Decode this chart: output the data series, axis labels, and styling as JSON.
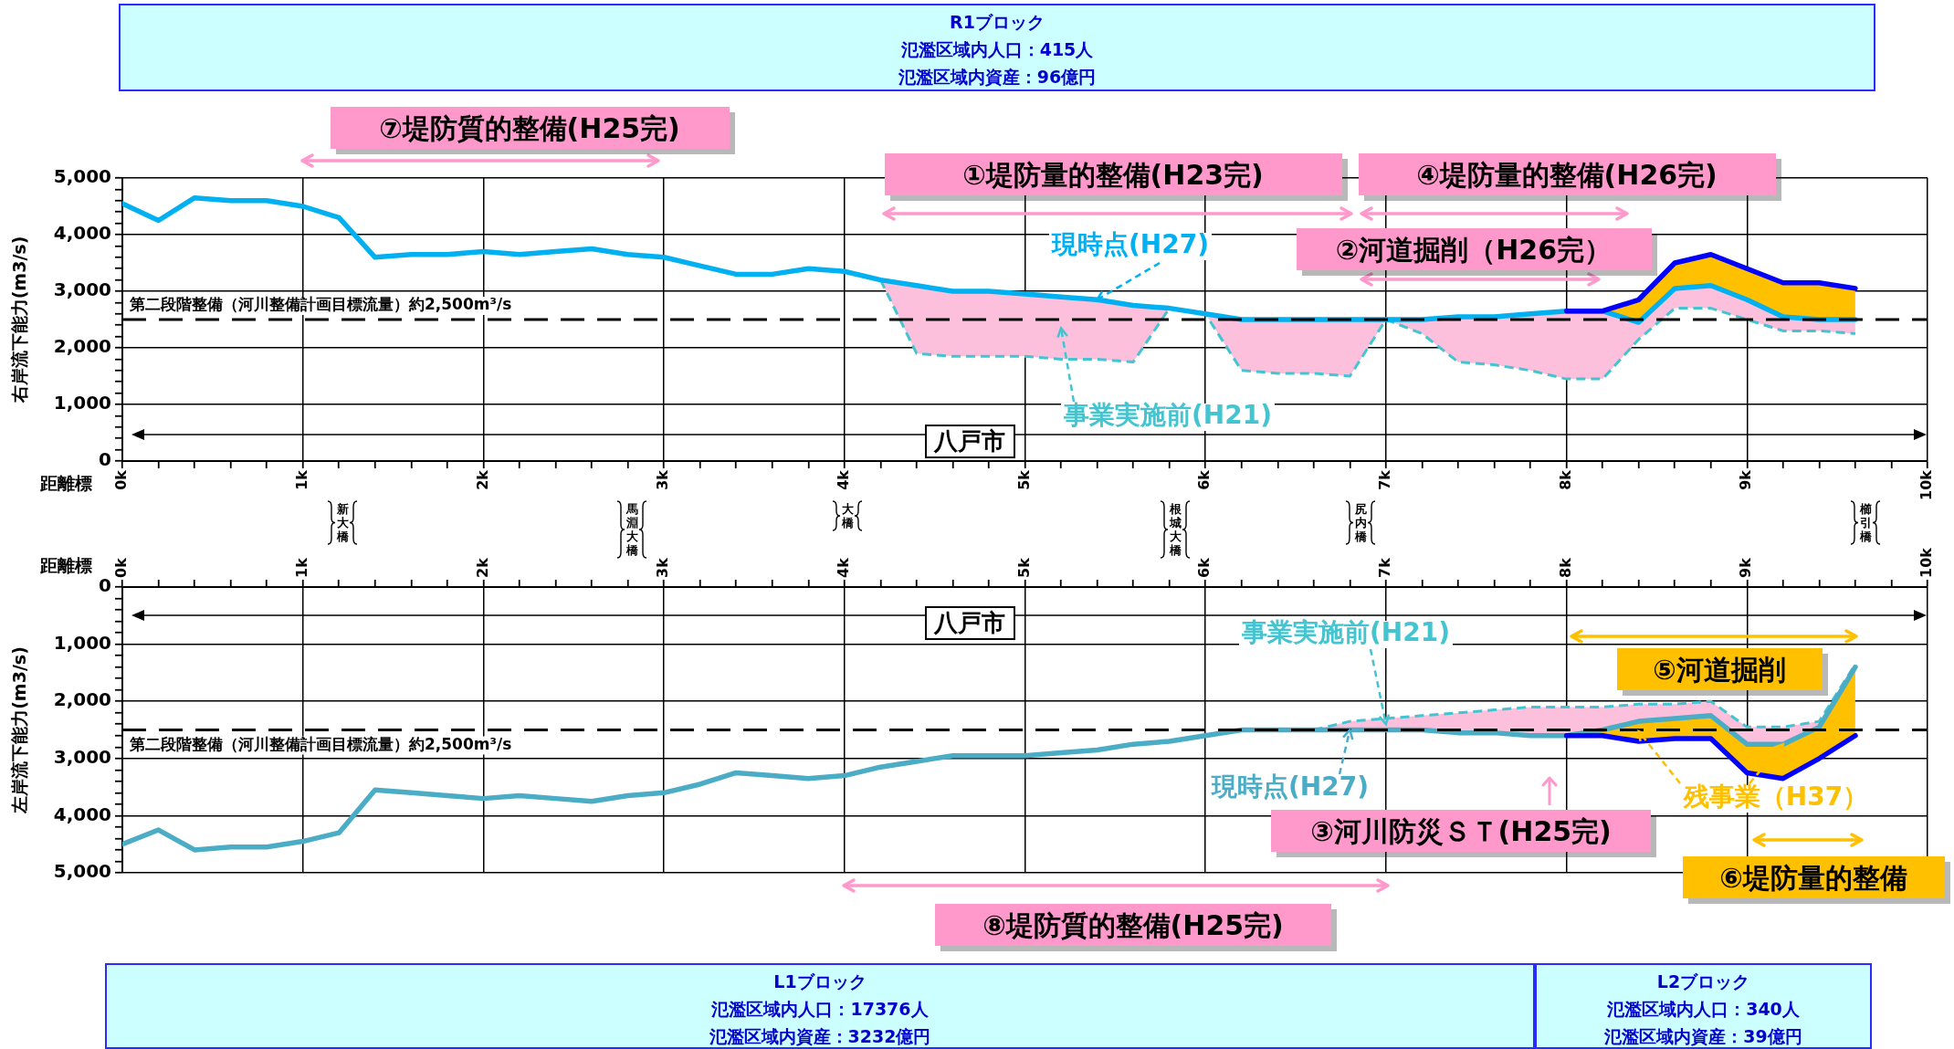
{
  "chart_data": [
    {
      "type": "other",
      "title": "R1ブロック",
      "annotations": [
        "氾濫区域内人口：415人",
        "氾濫区域内資産：96億円"
      ]
    },
    {
      "type": "line",
      "xlabel": "距離標",
      "ylabel": "右岸流下能力(m3/s)",
      "xlim": [
        0,
        10
      ],
      "ylim": [
        0,
        5000
      ],
      "xticks": [
        {
          "value": 0,
          "label": "0k"
        },
        {
          "value": 0.2,
          "label": null
        },
        {
          "value": 0.4,
          "label": null
        },
        {
          "value": 0.6,
          "label": null
        },
        {
          "value": 0.8,
          "label": null
        },
        {
          "value": 1,
          "label": "1k"
        },
        {
          "value": 1.2,
          "label": null
        },
        {
          "value": 1.4,
          "label": null
        },
        {
          "value": 1.6,
          "label": null
        },
        {
          "value": 1.8,
          "label": null
        },
        {
          "value": 2,
          "label": "2k"
        },
        {
          "value": 2.2,
          "label": null
        },
        {
          "value": 2.4,
          "label": null
        },
        {
          "value": 2.6,
          "label": null
        },
        {
          "value": 2.8,
          "label": null
        },
        {
          "value": 3,
          "label": "3k"
        },
        {
          "value": 3.2,
          "label": null
        },
        {
          "value": 3.4,
          "label": null
        },
        {
          "value": 3.6,
          "label": null
        },
        {
          "value": 3.8,
          "label": null
        },
        {
          "value": 4,
          "label": "4k"
        },
        {
          "value": 4.2,
          "label": null
        },
        {
          "value": 4.4,
          "label": null
        },
        {
          "value": 4.6,
          "label": null
        },
        {
          "value": 4.8,
          "label": null
        },
        {
          "value": 5,
          "label": "5k"
        },
        {
          "value": 5.2,
          "label": null
        },
        {
          "value": 5.4,
          "label": null
        },
        {
          "value": 5.6,
          "label": null
        },
        {
          "value": 5.8,
          "label": null
        },
        {
          "value": 6,
          "label": "6k"
        },
        {
          "value": 6.2,
          "label": null
        },
        {
          "value": 6.4,
          "label": null
        },
        {
          "value": 6.6,
          "label": null
        },
        {
          "value": 6.8,
          "label": null
        },
        {
          "value": 7,
          "label": "7k"
        },
        {
          "value": 7.2,
          "label": null
        },
        {
          "value": 7.4,
          "label": null
        },
        {
          "value": 7.6,
          "label": null
        },
        {
          "value": 7.8,
          "label": null
        },
        {
          "value": 8,
          "label": "8k"
        },
        {
          "value": 8.2,
          "label": null
        },
        {
          "value": 8.4,
          "label": null
        },
        {
          "value": 8.6,
          "label": null
        },
        {
          "value": 8.8,
          "label": null
        },
        {
          "value": 9,
          "label": "9k"
        },
        {
          "value": 9.2,
          "label": null
        },
        {
          "value": 9.4,
          "label": null
        },
        {
          "value": 9.6,
          "label": null
        },
        {
          "value": 9.8,
          "label": null
        },
        {
          "value": 10,
          "label": "10k"
        }
      ],
      "yticks": [
        0,
        {
          "value": 200,
          "label": null
        },
        {
          "value": 400,
          "label": null
        },
        {
          "value": 600,
          "label": null
        },
        {
          "value": 800,
          "label": null
        },
        {
          "value": 1000,
          "label": "1,000"
        },
        {
          "value": 1200,
          "label": null
        },
        {
          "value": 1400,
          "label": null
        },
        {
          "value": 1600,
          "label": null
        },
        {
          "value": 1800,
          "label": null
        },
        {
          "value": 2000,
          "label": "2,000"
        },
        {
          "value": 2200,
          "label": null
        },
        {
          "value": 2400,
          "label": null
        },
        {
          "value": 2600,
          "label": null
        },
        {
          "value": 2800,
          "label": null
        },
        {
          "value": 3000,
          "label": "3,000"
        },
        {
          "value": 3200,
          "label": null
        },
        {
          "value": 3400,
          "label": null
        },
        {
          "value": 3600,
          "label": null
        },
        {
          "value": 3800,
          "label": null
        },
        {
          "value": 4000,
          "label": "4,000"
        },
        {
          "value": 4200,
          "label": null
        },
        {
          "value": 4400,
          "label": null
        },
        {
          "value": 4600,
          "label": null
        },
        {
          "value": 4800,
          "label": null
        },
        {
          "value": 5000,
          "label": "5,000"
        }
      ],
      "grid": true,
      "marker": "none",
      "series": [
        {
          "name": "事業実施前(H21)",
          "color": "#44c4d0",
          "line_style": "dashed",
          "x": [
            4.2,
            4.4,
            4.6,
            4.8,
            5,
            5.2,
            5.4,
            5.6,
            5.8,
            6,
            6.2,
            6.4,
            6.6,
            6.8,
            7,
            7.2,
            7.4,
            7.6,
            7.8,
            8,
            8.2,
            8.4,
            8.6,
            8.8,
            9,
            9.2,
            9.4,
            9.6
          ],
          "values": [
            3200,
            1900,
            1850,
            1850,
            1850,
            1800,
            1800,
            1750,
            2700,
            2600,
            1600,
            1550,
            1550,
            1500,
            2500,
            2250,
            1750,
            1700,
            1600,
            1450,
            1450,
            2150,
            2700,
            2700,
            2500,
            2300,
            2300,
            2250
          ],
          "lower": [
            3200,
            1900,
            1850,
            1850,
            1850,
            1800,
            1800,
            1750,
            2700,
            2600,
            1600,
            1550,
            1550,
            1500,
            2500,
            2250,
            1750,
            1700,
            1600,
            1450,
            1450,
            2150,
            2700,
            2700,
            2500,
            2300,
            2300,
            2250
          ],
          "upper": [
            3200,
            3100,
            3000,
            3000,
            2950,
            2900,
            2850,
            2750,
            2700,
            2600,
            2500,
            2500,
            2500,
            2500,
            2500,
            2500,
            2550,
            2550,
            2600,
            2650,
            2650,
            2450,
            3050,
            3100,
            2850,
            2550,
            2500,
            2500
          ]
        },
        {
          "name": "現時点(H27)",
          "color": "#00b0f0",
          "x": [
            0,
            0.2,
            0.4,
            0.6,
            0.8,
            1,
            1.2,
            1.4,
            1.6,
            1.8,
            2,
            2.2,
            2.4,
            2.6,
            2.8,
            3,
            3.2,
            3.4,
            3.6,
            3.8,
            4,
            4.2,
            4.4,
            4.6,
            4.8,
            5,
            5.2,
            5.4,
            5.6,
            5.8,
            6,
            6.2,
            6.4,
            6.6,
            6.8,
            7,
            7.2,
            7.4,
            7.6,
            7.8,
            8,
            8.2,
            8.4,
            8.6,
            8.8,
            9,
            9.2,
            9.4,
            9.6
          ],
          "values": [
            4550,
            4250,
            4650,
            4600,
            4600,
            4500,
            4300,
            3600,
            3650,
            3650,
            3700,
            3650,
            3700,
            3750,
            3650,
            3600,
            3450,
            3300,
            3300,
            3400,
            3350,
            3200,
            3100,
            3000,
            3000,
            2950,
            2900,
            2850,
            2750,
            2700,
            2600,
            2500,
            2500,
            2500,
            2500,
            2500,
            2500,
            2550,
            2550,
            2600,
            2650,
            2650,
            2450,
            3050,
            3100,
            2850,
            2550,
            2500,
            2500
          ]
        },
        {
          "color": "#0000ff",
          "x": [
            8,
            8.2,
            8.4,
            8.6,
            8.8,
            9,
            9.2,
            9.4,
            9.6
          ],
          "values": [
            2650,
            2650,
            2850,
            3500,
            3650,
            3400,
            3150,
            3150,
            3050
          ],
          "lower": [
            2650,
            2650,
            2450,
            3050,
            3100,
            2850,
            2550,
            2500,
            2500
          ],
          "upper": [
            2650,
            2650,
            2850,
            3500,
            3650,
            3400,
            3150,
            3150,
            3050
          ]
        }
      ],
      "ref_lines": [
        {
          "axis": "y",
          "value": 2500,
          "label": "第二段階整備（河川整備計画目標流量）約2,500m³/s",
          "color": "#000000",
          "line_style": "dashed"
        }
      ],
      "annotations": [
        "⑦堤防質的整備(H25完)",
        "①堤防量的整備(H23完)",
        "④堤防量的整備(H26完)",
        "②河道掘削（H26完）",
        "八戸市",
        "新大橋",
        "馬淵大橋",
        "大橋",
        "根城大橋",
        "尻内橋",
        "櫛引橋"
      ]
    },
    {
      "type": "line",
      "xlabel": "距離標",
      "ylabel": "左岸流下能力(m3/s)",
      "xlim": [
        0,
        10
      ],
      "ylim": [
        5000,
        0
      ],
      "xticks": [
        {
          "value": 0,
          "label": "0k"
        },
        {
          "value": 0.2,
          "label": null
        },
        {
          "value": 0.4,
          "label": null
        },
        {
          "value": 0.6,
          "label": null
        },
        {
          "value": 0.8,
          "label": null
        },
        {
          "value": 1,
          "label": "1k"
        },
        {
          "value": 1.2,
          "label": null
        },
        {
          "value": 1.4,
          "label": null
        },
        {
          "value": 1.6,
          "label": null
        },
        {
          "value": 1.8,
          "label": null
        },
        {
          "value": 2,
          "label": "2k"
        },
        {
          "value": 2.2,
          "label": null
        },
        {
          "value": 2.4,
          "label": null
        },
        {
          "value": 2.6,
          "label": null
        },
        {
          "value": 2.8,
          "label": null
        },
        {
          "value": 3,
          "label": "3k"
        },
        {
          "value": 3.2,
          "label": null
        },
        {
          "value": 3.4,
          "label": null
        },
        {
          "value": 3.6,
          "label": null
        },
        {
          "value": 3.8,
          "label": null
        },
        {
          "value": 4,
          "label": "4k"
        },
        {
          "value": 4.2,
          "label": null
        },
        {
          "value": 4.4,
          "label": null
        },
        {
          "value": 4.6,
          "label": null
        },
        {
          "value": 4.8,
          "label": null
        },
        {
          "value": 5,
          "label": "5k"
        },
        {
          "value": 5.2,
          "label": null
        },
        {
          "value": 5.4,
          "label": null
        },
        {
          "value": 5.6,
          "label": null
        },
        {
          "value": 5.8,
          "label": null
        },
        {
          "value": 6,
          "label": "6k"
        },
        {
          "value": 6.2,
          "label": null
        },
        {
          "value": 6.4,
          "label": null
        },
        {
          "value": 6.6,
          "label": null
        },
        {
          "value": 6.8,
          "label": null
        },
        {
          "value": 7,
          "label": "7k"
        },
        {
          "value": 7.2,
          "label": null
        },
        {
          "value": 7.4,
          "label": null
        },
        {
          "value": 7.6,
          "label": null
        },
        {
          "value": 7.8,
          "label": null
        },
        {
          "value": 8,
          "label": "8k"
        },
        {
          "value": 8.2,
          "label": null
        },
        {
          "value": 8.4,
          "label": null
        },
        {
          "value": 8.6,
          "label": null
        },
        {
          "value": 8.8,
          "label": null
        },
        {
          "value": 9,
          "label": "9k"
        },
        {
          "value": 9.2,
          "label": null
        },
        {
          "value": 9.4,
          "label": null
        },
        {
          "value": 9.6,
          "label": null
        },
        {
          "value": 9.8,
          "label": null
        },
        {
          "value": 10,
          "label": "10k"
        }
      ],
      "yticks": [
        0,
        {
          "value": 200,
          "label": null
        },
        {
          "value": 400,
          "label": null
        },
        {
          "value": 600,
          "label": null
        },
        {
          "value": 800,
          "label": null
        },
        {
          "value": 1000,
          "label": "1,000"
        },
        {
          "value": 1200,
          "label": null
        },
        {
          "value": 1400,
          "label": null
        },
        {
          "value": 1600,
          "label": null
        },
        {
          "value": 1800,
          "label": null
        },
        {
          "value": 2000,
          "label": "2,000"
        },
        {
          "value": 2200,
          "label": null
        },
        {
          "value": 2400,
          "label": null
        },
        {
          "value": 2600,
          "label": null
        },
        {
          "value": 2800,
          "label": null
        },
        {
          "value": 3000,
          "label": "3,000"
        },
        {
          "value": 3200,
          "label": null
        },
        {
          "value": 3400,
          "label": null
        },
        {
          "value": 3600,
          "label": null
        },
        {
          "value": 3800,
          "label": null
        },
        {
          "value": 4000,
          "label": "4,000"
        },
        {
          "value": 4200,
          "label": null
        },
        {
          "value": 4400,
          "label": null
        },
        {
          "value": 4600,
          "label": null
        },
        {
          "value": 4800,
          "label": null
        },
        {
          "value": 5000,
          "label": "5,000"
        }
      ],
      "grid": true,
      "marker": "none",
      "series": [
        {
          "name": "事業実施前(H21)",
          "color": "#44c4d0",
          "line_style": "dashed",
          "x": [
            6.6,
            6.8,
            7,
            7.2,
            7.4,
            7.6,
            7.8,
            8,
            8.2,
            8.4,
            8.6,
            8.8,
            9,
            9.2,
            9.4,
            9.6
          ],
          "values": [
            2500,
            2350,
            2300,
            2250,
            2200,
            2150,
            2100,
            2100,
            2100,
            2050,
            2050,
            2000,
            2450,
            2450,
            2350,
            1350
          ],
          "lower": [
            2500,
            2350,
            2300,
            2250,
            2200,
            2150,
            2100,
            2100,
            2100,
            2050,
            2050,
            2000,
            2450,
            2450,
            2350,
            1350
          ],
          "upper": [
            2500,
            2500,
            2500,
            2500,
            2550,
            2550,
            2600,
            2600,
            2500,
            2350,
            2300,
            2250,
            2750,
            2750,
            2450,
            1400
          ]
        },
        {
          "name": "現時点(H27)",
          "color": "#4bacc6",
          "x": [
            0,
            0.2,
            0.4,
            0.6,
            0.8,
            1,
            1.2,
            1.4,
            1.6,
            1.8,
            2,
            2.2,
            2.4,
            2.6,
            2.8,
            3,
            3.2,
            3.4,
            3.6,
            3.8,
            4,
            4.2,
            4.4,
            4.6,
            4.8,
            5,
            5.2,
            5.4,
            5.6,
            5.8,
            6,
            6.2,
            6.4,
            6.6,
            6.8,
            7,
            7.2,
            7.4,
            7.6,
            7.8,
            8,
            8.2,
            8.4,
            8.6,
            8.8,
            9,
            9.2,
            9.4,
            9.6
          ],
          "values": [
            4500,
            4250,
            4600,
            4550,
            4550,
            4450,
            4300,
            3550,
            3600,
            3650,
            3700,
            3650,
            3700,
            3750,
            3650,
            3600,
            3450,
            3250,
            3300,
            3350,
            3300,
            3150,
            3050,
            2950,
            2950,
            2950,
            2900,
            2850,
            2750,
            2700,
            2600,
            2500,
            2500,
            2500,
            2500,
            2500,
            2500,
            2550,
            2550,
            2600,
            2600,
            2500,
            2350,
            2300,
            2250,
            2750,
            2750,
            2450,
            1400
          ]
        },
        {
          "name": "残事業（H37）",
          "color": "#0000ff",
          "x": [
            8,
            8.2,
            8.4,
            8.6,
            8.8,
            9,
            9.2,
            9.4,
            9.6
          ],
          "values": [
            2600,
            2600,
            2700,
            2650,
            2650,
            3250,
            3350,
            3000,
            2600
          ],
          "lower": [
            2600,
            2500,
            2350,
            2300,
            2250,
            2750,
            2750,
            2450,
            1400
          ],
          "upper": [
            2600,
            2600,
            2700,
            2650,
            2650,
            3250,
            3350,
            3000,
            2600
          ]
        }
      ],
      "ref_lines": [
        {
          "axis": "y",
          "value": 2500,
          "label": "第二段階整備（河川整備計画目標流量）約2,500m³/s",
          "color": "#000000",
          "line_style": "dashed"
        }
      ],
      "annotations": [
        "八戸市",
        "⑤河道掘削",
        "⑥堤防量的整備",
        "⑧堤防質的整備(H25完)",
        "③河川防災ＳＴ(H25完)"
      ]
    },
    {
      "type": "other",
      "title": "L1ブロック",
      "annotations": [
        "氾濫区域内人口：17376人",
        "氾濫区域内資産：3232億円"
      ]
    },
    {
      "type": "other",
      "title": "L2ブロック",
      "annotations": [
        "氾濫区域内人口：340人",
        "氾濫区域内資産：39億円"
      ]
    }
  ]
}
